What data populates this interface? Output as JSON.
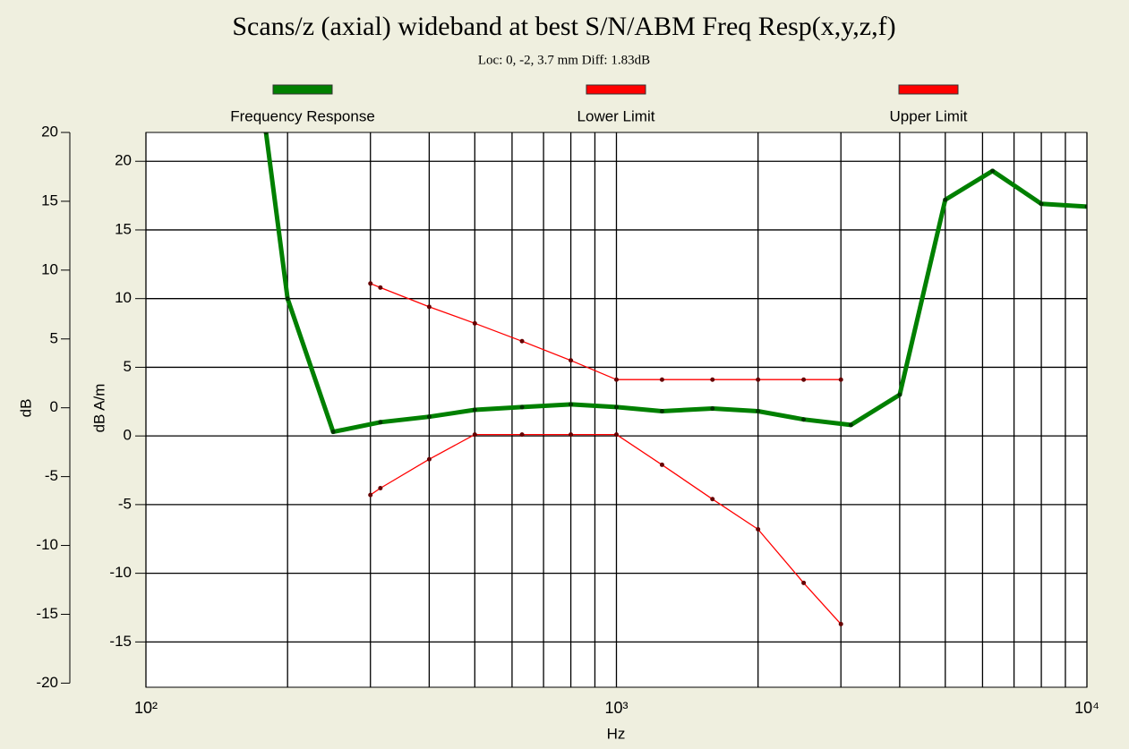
{
  "chart_data": {
    "type": "line",
    "title": "Scans/z (axial) wideband at best S/N/ABM Freq Resp(x,y,z,f)",
    "subtitle": "Loc: 0, -2, 3.7 mm Diff: 1.83dB",
    "xlabel": "Hz",
    "ylabel": "dB A/m",
    "y2label": "dB",
    "xscale": "log",
    "xlim": [
      100,
      10000
    ],
    "xticks": [
      {
        "value": 100,
        "label": "10²"
      },
      {
        "value": 1000,
        "label": "10³"
      },
      {
        "value": 10000,
        "label": "10⁴"
      }
    ],
    "x_grid": [
      200,
      300,
      400,
      500,
      600,
      700,
      800,
      900,
      2000,
      3000,
      4000,
      5000,
      6000,
      7000,
      8000,
      9000
    ],
    "ylim": [
      -18.3,
      22.1
    ],
    "yticks": [
      20,
      15,
      10,
      5,
      0,
      -5,
      -10,
      -15
    ],
    "y2lim": [
      -20.3,
      20
    ],
    "y2ticks": [
      20,
      15,
      10,
      5,
      0,
      -5,
      -10,
      -15,
      -20
    ],
    "grid": true,
    "series": [
      {
        "name": "Frequency Response",
        "color": "#008000",
        "x": [
          180,
          200,
          250,
          315,
          400,
          500,
          630,
          800,
          1000,
          1250,
          1600,
          2000,
          2500,
          3150,
          4000,
          5000,
          6300,
          8000,
          10000
        ],
        "values": [
          22.1,
          10,
          0.3,
          1.0,
          1.4,
          1.9,
          2.1,
          2.3,
          2.1,
          1.8,
          2.0,
          1.8,
          1.2,
          0.8,
          3.0,
          17.2,
          19.3,
          16.9,
          16.7
        ]
      },
      {
        "name": "Lower Limit",
        "color": "#ff0000",
        "x": [
          300,
          315,
          400,
          500,
          630,
          800,
          1000,
          1250,
          1600,
          2000,
          2500,
          3000
        ],
        "values": [
          -4.3,
          -3.8,
          -1.7,
          0.1,
          0.1,
          0.1,
          0.1,
          -2.1,
          -4.6,
          -6.8,
          -10.7,
          -13.7
        ]
      },
      {
        "name": "Upper Limit",
        "color": "#ff0000",
        "x": [
          300,
          315,
          400,
          500,
          630,
          800,
          1000,
          1250,
          1600,
          2000,
          2500,
          3000
        ],
        "values": [
          11.1,
          10.8,
          9.4,
          8.2,
          6.9,
          5.5,
          4.1,
          4.1,
          4.1,
          4.1,
          4.1,
          4.1
        ]
      }
    ]
  }
}
